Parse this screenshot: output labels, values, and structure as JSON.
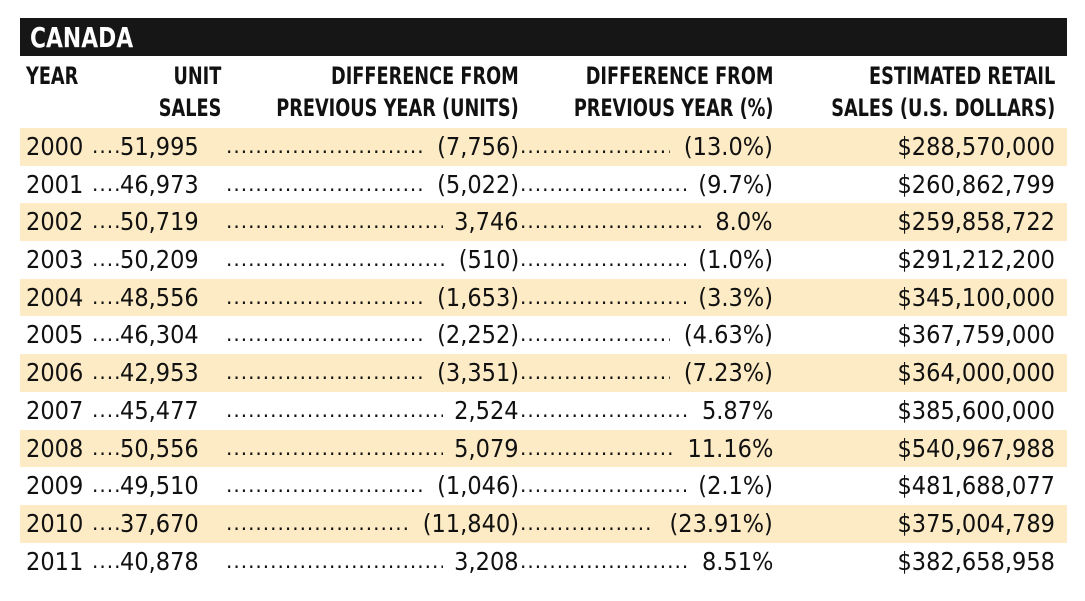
{
  "chart_data": {
    "type": "table",
    "title": "CANADA",
    "columns": [
      "YEAR",
      "UNIT\nSALES",
      "DIFFERENCE FROM\nPREVIOUS YEAR (UNITS)",
      "DIFFERENCE FROM\nPREVIOUS YEAR (%)",
      "ESTIMATED RETAIL\nSALES (U.S. DOLLARS)"
    ],
    "rows": [
      {
        "year": "2000",
        "units": "51,995",
        "diff_units": "(7,756)",
        "diff_pct": "(13.0%)",
        "sales": "$288,570,000"
      },
      {
        "year": "2001",
        "units": "46,973",
        "diff_units": "(5,022)",
        "diff_pct": "(9.7%)",
        "sales": "$260,862,799"
      },
      {
        "year": "2002",
        "units": "50,719",
        "diff_units": "3,746",
        "diff_pct": "8.0%",
        "sales": "$259,858,722"
      },
      {
        "year": "2003",
        "units": "50,209",
        "diff_units": "(510)",
        "diff_pct": "(1.0%)",
        "sales": "$291,212,200"
      },
      {
        "year": "2004",
        "units": "48,556",
        "diff_units": "(1,653)",
        "diff_pct": "(3.3%)",
        "sales": "$345,100,000"
      },
      {
        "year": "2005",
        "units": "46,304",
        "diff_units": "(2,252)",
        "diff_pct": "(4.63%)",
        "sales": "$367,759,000"
      },
      {
        "year": "2006",
        "units": "42,953",
        "diff_units": "(3,351)",
        "diff_pct": "(7.23%)",
        "sales": "$364,000,000"
      },
      {
        "year": "2007",
        "units": "45,477",
        "diff_units": "2,524",
        "diff_pct": "5.87%",
        "sales": "$385,600,000"
      },
      {
        "year": "2008",
        "units": "50,556",
        "diff_units": "5,079",
        "diff_pct": "11.16%",
        "sales": "$540,967,988"
      },
      {
        "year": "2009",
        "units": "49,510",
        "diff_units": "(1,046)",
        "diff_pct": "(2.1%)",
        "sales": "$481,688,077"
      },
      {
        "year": "2010",
        "units": "37,670",
        "diff_units": "(11,840)",
        "diff_pct": "(23.91%)",
        "sales": "$375,004,789"
      },
      {
        "year": "2011",
        "units": "40,878",
        "diff_units": "3,208",
        "diff_pct": "8.51%",
        "sales": "$382,658,958"
      }
    ],
    "shaded_rows": "alternating, starting with first row",
    "colors": {
      "banner": "#161616",
      "shade": "#fcebc4"
    }
  }
}
